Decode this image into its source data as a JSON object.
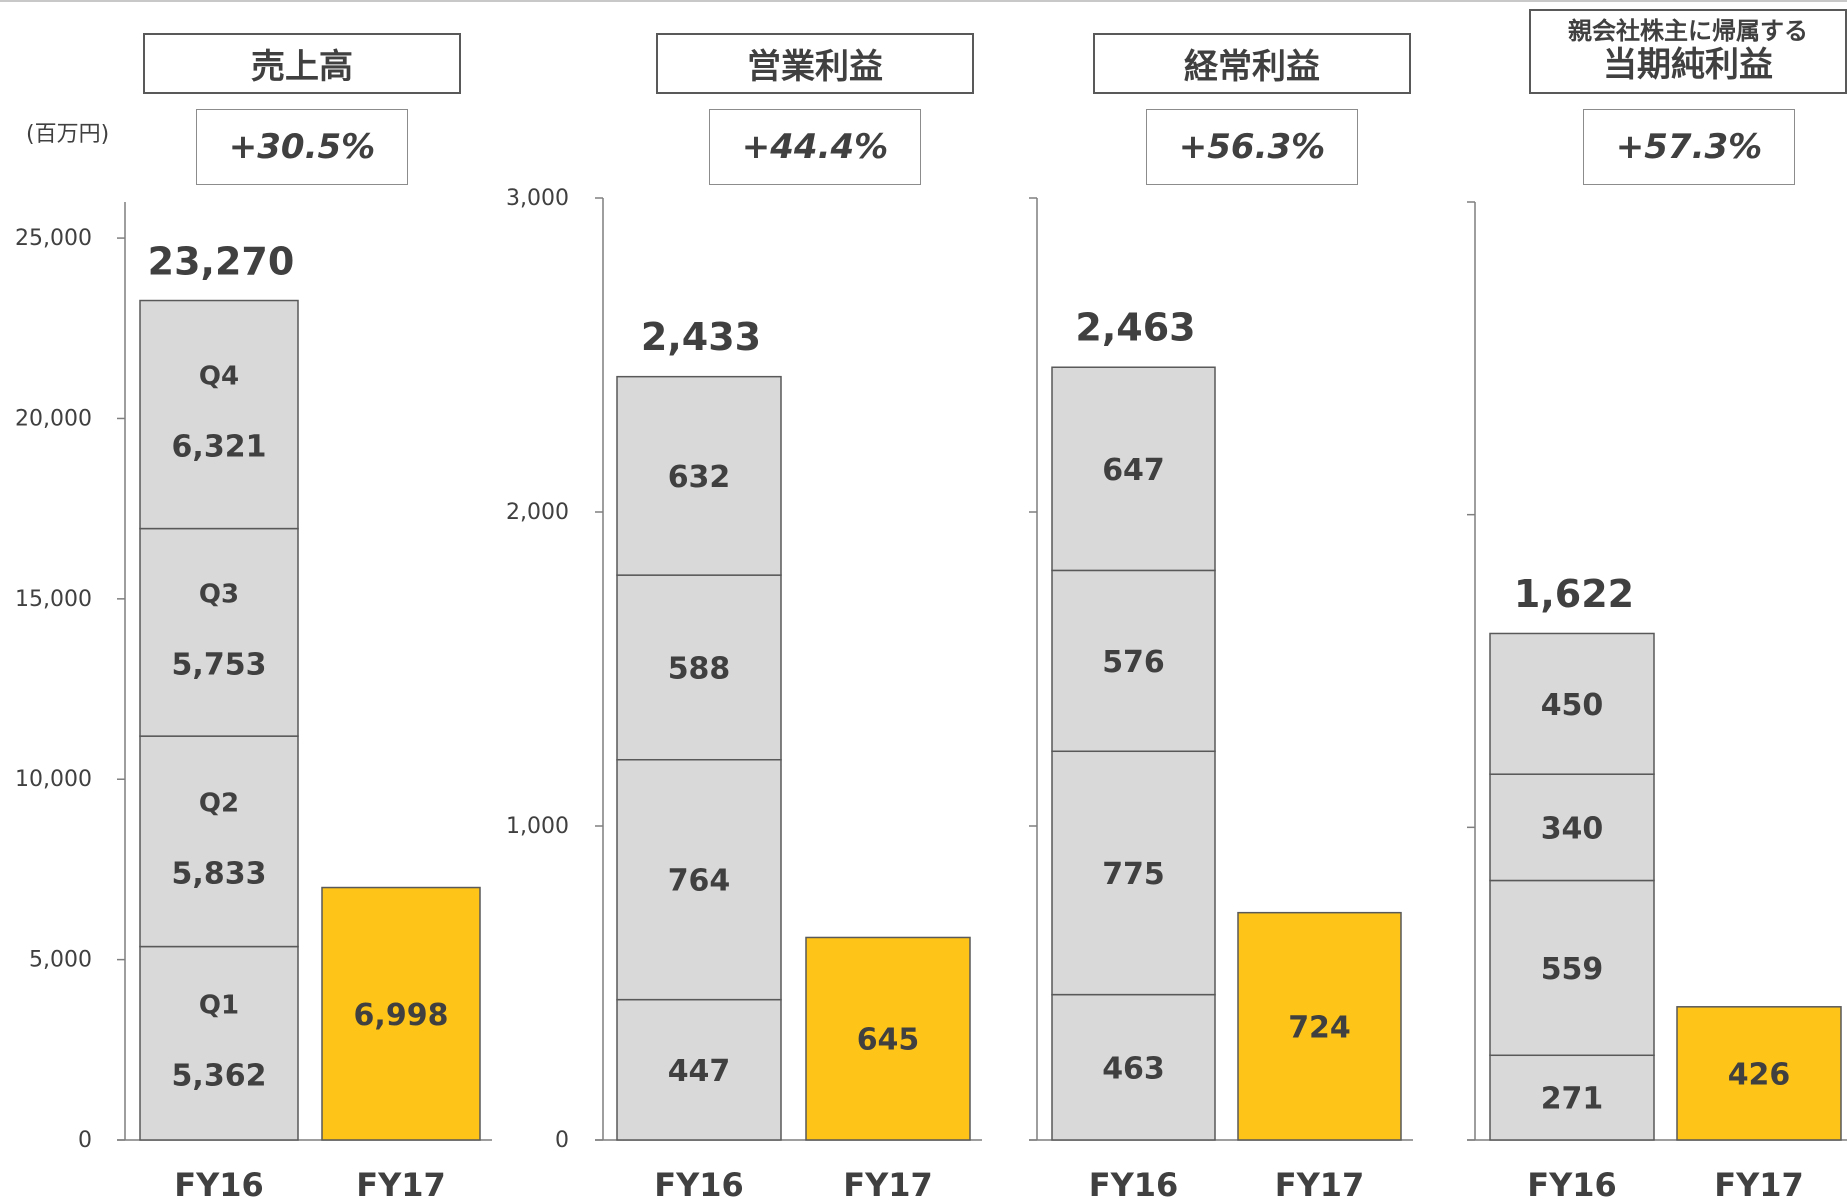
{
  "unit": "(百万円)",
  "colors": {
    "fy16": "#d9d9d9",
    "fy17": "#fec418",
    "bar_border": "#595959",
    "axis": "#7f7f7f",
    "text": "#404040"
  },
  "chart_data": [
    {
      "type": "bar",
      "title": "売上高",
      "growth": "+30.5%",
      "categories": [
        "FY16",
        "FY17"
      ],
      "ylim": [
        0,
        26000
      ],
      "yticks": [
        0,
        5000,
        10000,
        15000,
        20000,
        25000
      ],
      "ytick_labels": [
        "0",
        "5,000",
        "10,000",
        "15,000",
        "20,000",
        "25,000"
      ],
      "stacked_fy16": {
        "segments": [
          {
            "quarter": "Q1",
            "value": 5362,
            "label": "5,362"
          },
          {
            "quarter": "Q2",
            "value": 5833,
            "label": "5,833"
          },
          {
            "quarter": "Q3",
            "value": 5753,
            "label": "5,753"
          },
          {
            "quarter": "Q4",
            "value": 6321,
            "label": "6,321"
          }
        ],
        "total": 23270,
        "total_label": "23,270"
      },
      "fy17": {
        "value": 6998,
        "label": "6,998"
      }
    },
    {
      "type": "bar",
      "title": "営業利益",
      "growth": "+44.4%",
      "categories": [
        "FY16",
        "FY17"
      ],
      "ylim": [
        0,
        3000
      ],
      "yticks": [
        0,
        1000,
        2000,
        3000
      ],
      "ytick_labels": [
        "0",
        "1,000",
        "2,000",
        "3,000"
      ],
      "stacked_fy16": {
        "segments": [
          {
            "value": 447,
            "label": "447"
          },
          {
            "value": 764,
            "label": "764"
          },
          {
            "value": 588,
            "label": "588"
          },
          {
            "value": 632,
            "label": "632"
          }
        ],
        "total": 2433,
        "total_label": "2,433"
      },
      "fy17": {
        "value": 645,
        "label": "645"
      }
    },
    {
      "type": "bar",
      "title": "経常利益",
      "growth": "+56.3%",
      "categories": [
        "FY16",
        "FY17"
      ],
      "ylim": [
        0,
        3000
      ],
      "yticks": [
        0,
        1000,
        2000,
        3000
      ],
      "ytick_labels": [],
      "stacked_fy16": {
        "segments": [
          {
            "value": 463,
            "label": "463"
          },
          {
            "value": 775,
            "label": "775"
          },
          {
            "value": 576,
            "label": "576"
          },
          {
            "value": 647,
            "label": "647"
          }
        ],
        "total": 2463,
        "total_label": "2,463"
      },
      "fy17": {
        "value": 724,
        "label": "724"
      }
    },
    {
      "type": "bar",
      "title": "当期純利益",
      "title_prefix": "親会社株主に帰属する",
      "growth": "+57.3%",
      "categories": [
        "FY16",
        "FY17"
      ],
      "ylim": [
        0,
        3000
      ],
      "yticks": [
        0,
        1000,
        2000,
        3000
      ],
      "ytick_labels": [],
      "stacked_fy16": {
        "segments": [
          {
            "value": 271,
            "label": "271"
          },
          {
            "value": 559,
            "label": "559"
          },
          {
            "value": 340,
            "label": "340"
          },
          {
            "value": 450,
            "label": "450"
          }
        ],
        "total": 1622,
        "total_label": "1,622"
      },
      "fy17": {
        "value": 426,
        "label": "426"
      }
    }
  ]
}
